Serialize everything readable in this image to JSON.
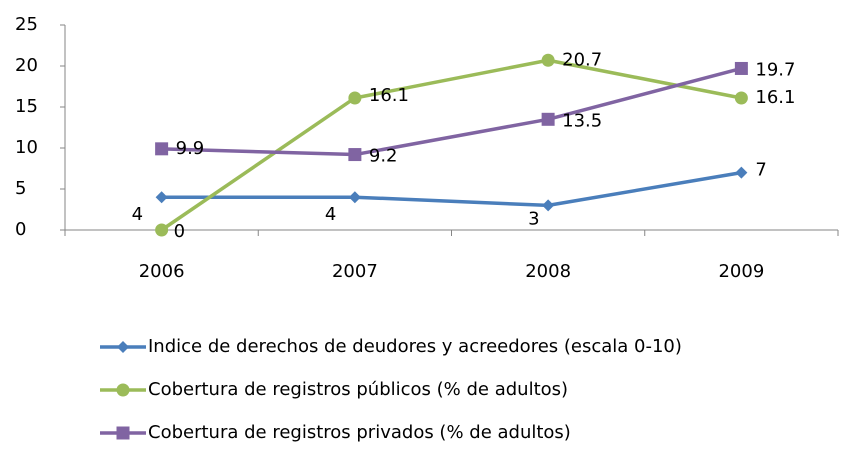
{
  "chart_data": {
    "type": "line",
    "categories": [
      "2006",
      "2007",
      "2008",
      "2009"
    ],
    "series": [
      {
        "name": "Indice de derechos de deudores y acreedores (escala 0-10)",
        "color": "#4a7ebb",
        "marker": "diamond",
        "values": [
          4,
          4,
          3,
          7
        ]
      },
      {
        "name": "Cobertura de registros públicos (% de adultos)",
        "color": "#9bbb59",
        "marker": "circle",
        "values": [
          0,
          16.1,
          20.7,
          16.1
        ]
      },
      {
        "name": "Cobertura de registros privados (% de adultos)",
        "color": "#8064a2",
        "marker": "square",
        "values": [
          9.9,
          9.2,
          13.5,
          19.7
        ]
      }
    ],
    "ylim": [
      0,
      25
    ],
    "yticks": [
      0,
      5,
      10,
      15,
      20,
      25
    ],
    "grid": false,
    "legend": "bottom"
  }
}
